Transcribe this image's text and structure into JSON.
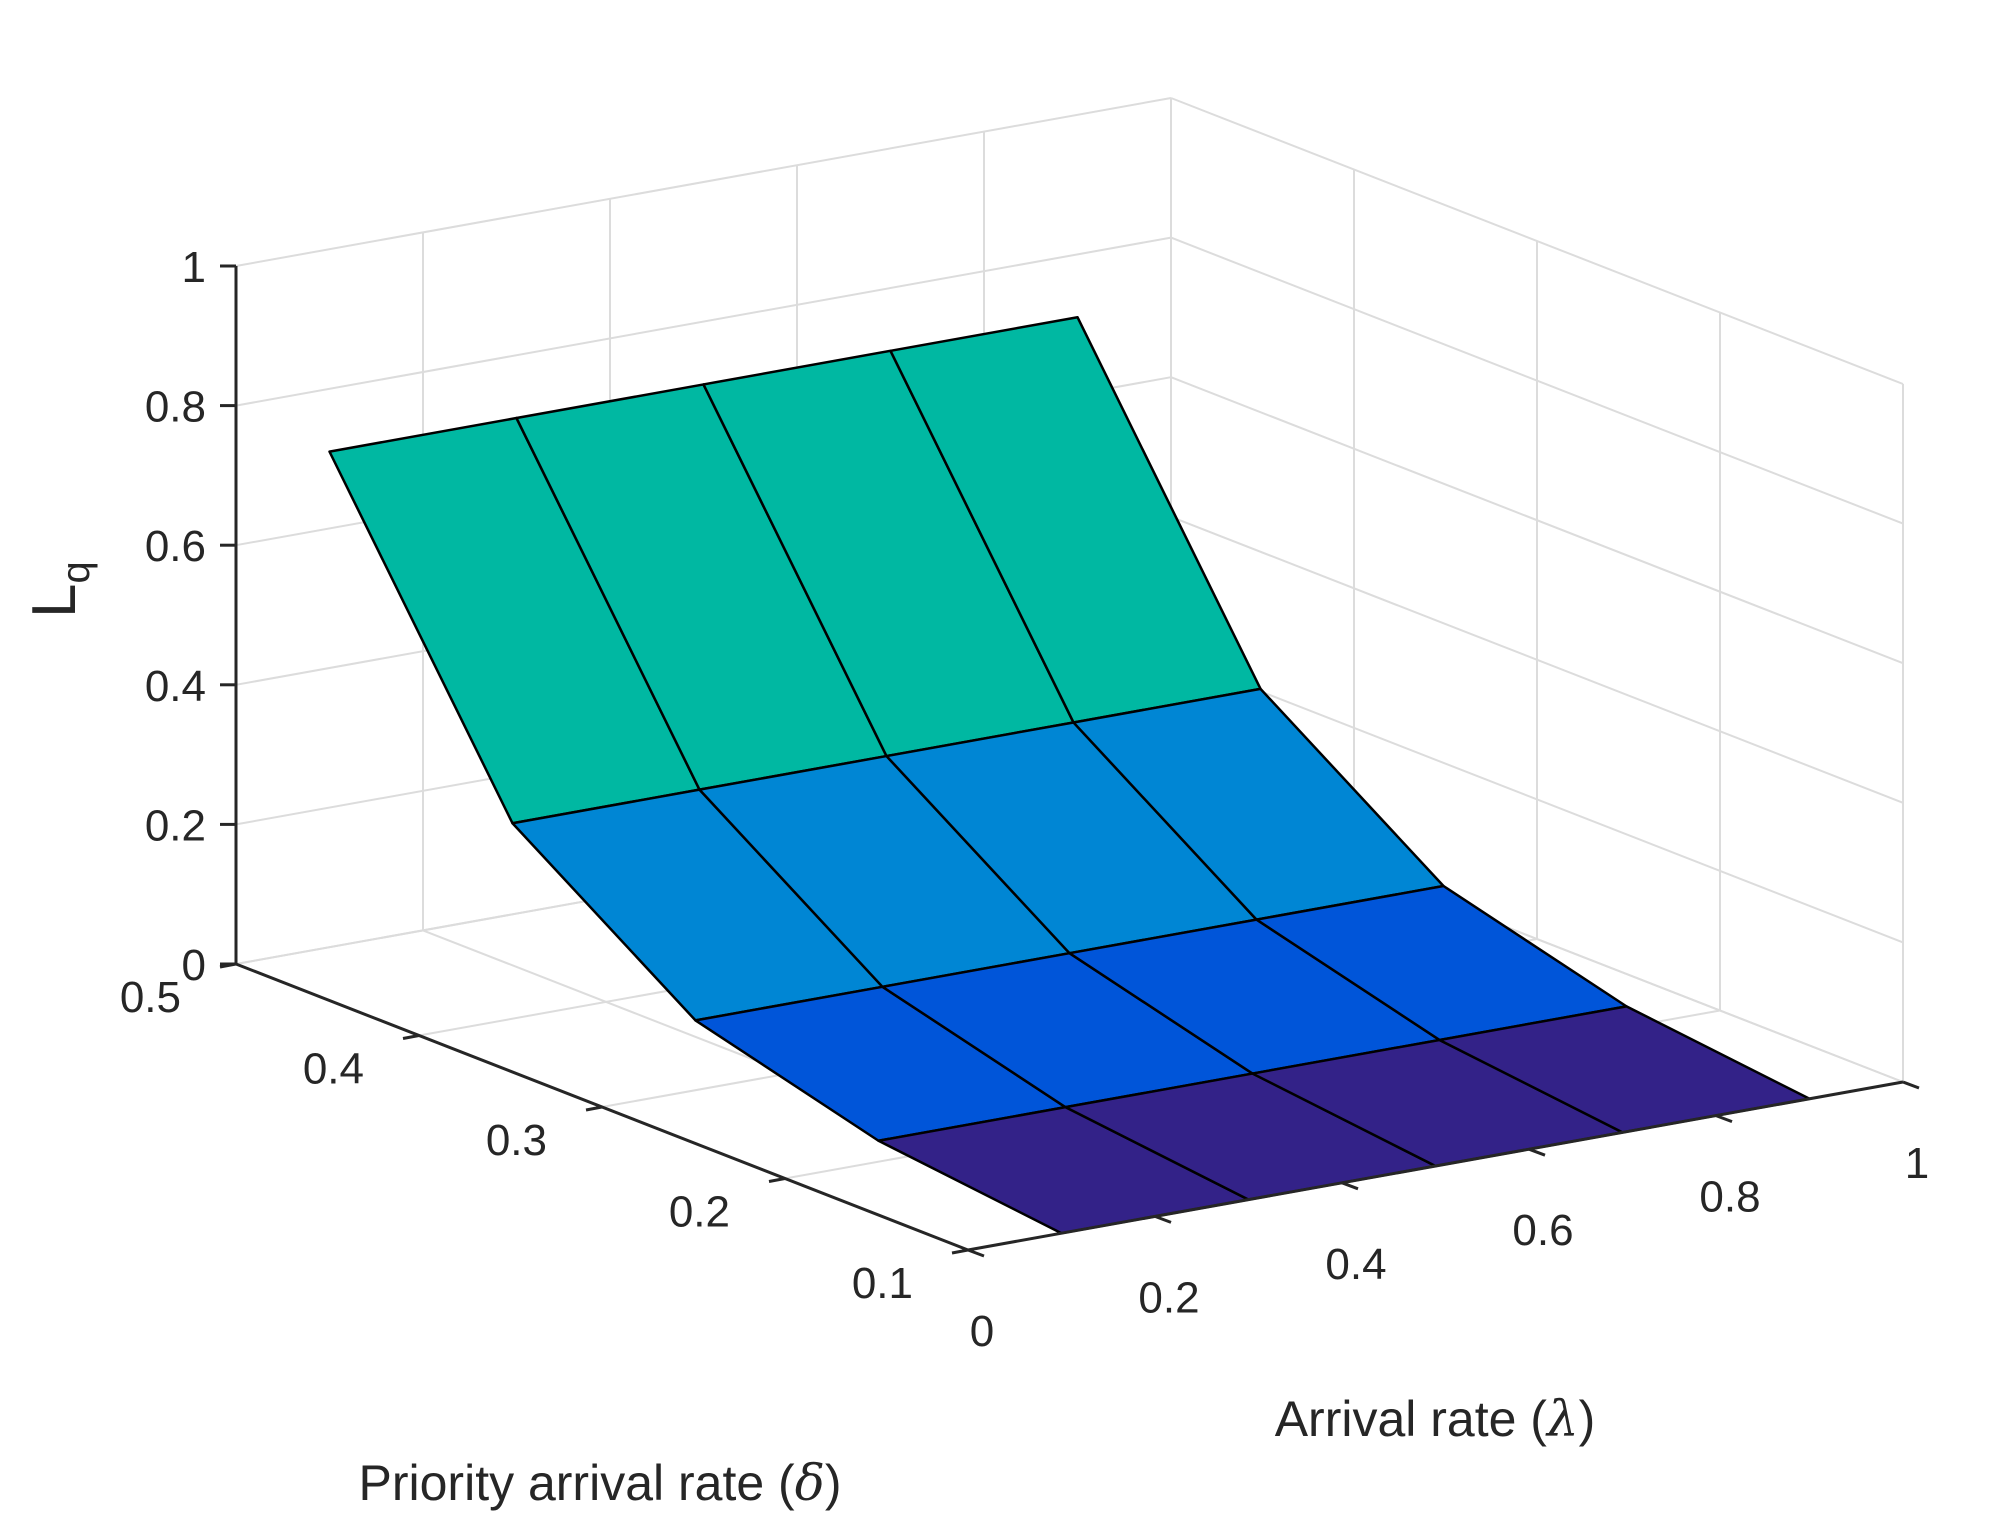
{
  "chart_data": {
    "type": "surface",
    "xlabel": "Arrival rate (λ)",
    "xlabel_text": "Arrival rate (",
    "xlabel_symbol": "λ",
    "ylabel": "Priority arrival rate (δ)",
    "ylabel_text": "Priority arrival rate (",
    "ylabel_symbol": "δ",
    "label_close": ")",
    "zlabel": "L",
    "zlabel_sub": "q",
    "xlim": [
      0,
      1
    ],
    "ylim": [
      0.1,
      0.5
    ],
    "zlim": [
      0,
      1
    ],
    "x_ticks": [
      "0",
      "0.2",
      "0.4",
      "0.6",
      "0.8",
      "1"
    ],
    "y_ticks": [
      "0.1",
      "0.2",
      "0.3",
      "0.4",
      "0.5"
    ],
    "z_ticks": [
      "0",
      "0.2",
      "0.4",
      "0.6",
      "0.8",
      "1"
    ],
    "x": [
      0.1,
      0.3,
      0.5,
      0.7,
      0.9
    ],
    "y": [
      0.1,
      0.2,
      0.3,
      0.4,
      0.5
    ],
    "z": [
      [
        0.0,
        0.0,
        0.0,
        0.0,
        0.0
      ],
      [
        0.03,
        0.03,
        0.03,
        0.03,
        0.03
      ],
      [
        0.1,
        0.1,
        0.1,
        0.1,
        0.1
      ],
      [
        0.28,
        0.28,
        0.28,
        0.28,
        0.28
      ],
      [
        0.71,
        0.71,
        0.71,
        0.71,
        0.71
      ]
    ],
    "colormap": [
      "#332288",
      "#0055d9",
      "#0086d4",
      "#00b8a2"
    ],
    "grid": true,
    "edge_color": "#000000"
  }
}
